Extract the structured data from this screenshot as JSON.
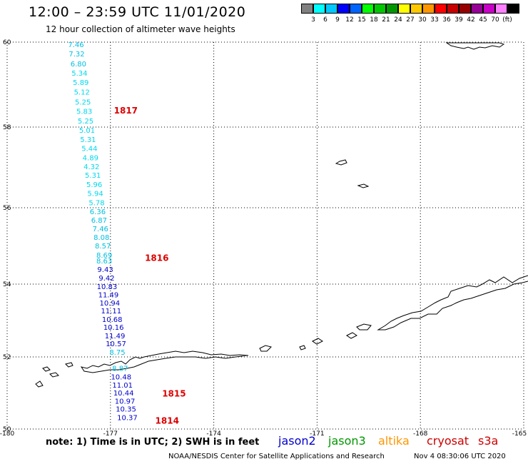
{
  "header": {
    "title": "12:00 – 23:59 UTC 11/01/2020",
    "subtitle": "12 hour collection of altimeter wave heights"
  },
  "legend": {
    "colors": [
      "#808080",
      "#00ffff",
      "#00c8ff",
      "#0000ff",
      "#0064ff",
      "#00ff00",
      "#00c800",
      "#009600",
      "#ffff00",
      "#ffc800",
      "#ff9600",
      "#ff0000",
      "#c80000",
      "#960000",
      "#960096",
      "#c800c8",
      "#ff80ff",
      "#000000"
    ],
    "labels": [
      "3",
      "6",
      "9",
      "12",
      "15",
      "18",
      "21",
      "24",
      "27",
      "30",
      "33",
      "36",
      "39",
      "42",
      "45",
      "70",
      "(ft)"
    ]
  },
  "axes": {
    "x_labels": [
      "-180",
      "-177",
      "-174",
      "-171",
      "-168",
      "-165"
    ],
    "y_labels": [
      "60",
      "58",
      "56",
      "54",
      "52",
      "50"
    ]
  },
  "tracks": [
    {
      "label": "1817",
      "label_lat": 58.4,
      "label_lon": -176.9
    },
    {
      "label": "1816",
      "label_lat": 54.7,
      "label_lon": -176.0
    },
    {
      "label": "1815",
      "label_lat": 51.0,
      "label_lon": -175.5
    },
    {
      "label": "1814",
      "label_lat": 50.25,
      "label_lon": -175.7
    }
  ],
  "observations": [
    {
      "value": "7.46",
      "lat": 59.95,
      "lon": -178.0,
      "color": "#00bfe0"
    },
    {
      "value": "7.32",
      "lat": 59.73,
      "lon": -177.98,
      "color": "#00bfe0"
    },
    {
      "value": "6.80",
      "lat": 59.5,
      "lon": -177.93,
      "color": "#00bfe0"
    },
    {
      "value": "5.34",
      "lat": 59.28,
      "lon": -177.9,
      "color": "#00d8ee"
    },
    {
      "value": "5.89",
      "lat": 59.06,
      "lon": -177.86,
      "color": "#00d8ee"
    },
    {
      "value": "5.12",
      "lat": 58.83,
      "lon": -177.83,
      "color": "#00d8ee"
    },
    {
      "value": "5.25",
      "lat": 58.6,
      "lon": -177.8,
      "color": "#00d8ee"
    },
    {
      "value": "5.83",
      "lat": 58.38,
      "lon": -177.76,
      "color": "#00d8ee"
    },
    {
      "value": "5.25",
      "lat": 58.15,
      "lon": -177.72,
      "color": "#00d8ee"
    },
    {
      "value": "5.01",
      "lat": 57.93,
      "lon": -177.68,
      "color": "#00d8ee"
    },
    {
      "value": "5.31",
      "lat": 57.7,
      "lon": -177.65,
      "color": "#00d8ee"
    },
    {
      "value": "5.44",
      "lat": 57.48,
      "lon": -177.61,
      "color": "#00d8ee"
    },
    {
      "value": "4.89",
      "lat": 57.25,
      "lon": -177.58,
      "color": "#00d8ee"
    },
    {
      "value": "4.32",
      "lat": 57.03,
      "lon": -177.55,
      "color": "#00d8ee"
    },
    {
      "value": "5.31",
      "lat": 56.81,
      "lon": -177.51,
      "color": "#00d8ee"
    },
    {
      "value": "5.96",
      "lat": 56.58,
      "lon": -177.47,
      "color": "#00d8ee"
    },
    {
      "value": "5.94",
      "lat": 56.36,
      "lon": -177.44,
      "color": "#00d8ee"
    },
    {
      "value": "5.78",
      "lat": 56.13,
      "lon": -177.4,
      "color": "#00d8ee"
    },
    {
      "value": "6.36",
      "lat": 55.91,
      "lon": -177.37,
      "color": "#00bfe0"
    },
    {
      "value": "6.87",
      "lat": 55.68,
      "lon": -177.33,
      "color": "#00bfe0"
    },
    {
      "value": "7.46",
      "lat": 55.46,
      "lon": -177.29,
      "color": "#00bfe0"
    },
    {
      "value": "8.08",
      "lat": 55.23,
      "lon": -177.26,
      "color": "#00bfe0"
    },
    {
      "value": "8.57",
      "lat": 55.01,
      "lon": -177.22,
      "color": "#00bfe0"
    },
    {
      "value": "8.69",
      "lat": 54.77,
      "lon": -177.18,
      "color": "#00bfe0"
    },
    {
      "value": "8.63",
      "lat": 54.62,
      "lon": -177.18,
      "color": "#00bfe0"
    },
    {
      "value": "9.43",
      "lat": 54.39,
      "lon": -177.15,
      "color": "#0000cc"
    },
    {
      "value": "9.42",
      "lat": 54.17,
      "lon": -177.11,
      "color": "#0000cc"
    },
    {
      "value": "10.83",
      "lat": 53.94,
      "lon": -177.1,
      "color": "#0000cc"
    },
    {
      "value": "11.49",
      "lat": 53.72,
      "lon": -177.06,
      "color": "#0000cc"
    },
    {
      "value": "10.94",
      "lat": 53.49,
      "lon": -177.02,
      "color": "#0000cc"
    },
    {
      "value": "11.11",
      "lat": 53.27,
      "lon": -176.98,
      "color": "#0000cc"
    },
    {
      "value": "10.68",
      "lat": 53.04,
      "lon": -176.95,
      "color": "#0000cc"
    },
    {
      "value": "10.16",
      "lat": 52.82,
      "lon": -176.91,
      "color": "#0000cc"
    },
    {
      "value": "11.49",
      "lat": 52.59,
      "lon": -176.87,
      "color": "#0000cc"
    },
    {
      "value": "10.57",
      "lat": 52.37,
      "lon": -176.84,
      "color": "#0000cc"
    },
    {
      "value": "8.75",
      "lat": 52.14,
      "lon": -176.8,
      "color": "#00bfe0"
    },
    {
      "value": "8.87",
      "lat": 51.69,
      "lon": -176.72,
      "color": "#00bfe0"
    },
    {
      "value": "10.48",
      "lat": 51.46,
      "lon": -176.69,
      "color": "#0000cc"
    },
    {
      "value": "11.01",
      "lat": 51.23,
      "lon": -176.65,
      "color": "#0000cc"
    },
    {
      "value": "10.44",
      "lat": 51.01,
      "lon": -176.62,
      "color": "#0000cc"
    },
    {
      "value": "10.97",
      "lat": 50.78,
      "lon": -176.58,
      "color": "#0000cc"
    },
    {
      "value": "10.35",
      "lat": 50.56,
      "lon": -176.55,
      "color": "#0000cc"
    },
    {
      "value": "10.37",
      "lat": 50.33,
      "lon": -176.51,
      "color": "#0000cc"
    }
  ],
  "footer": {
    "note": "note: 1) Time is in UTC; 2) SWH is in feet",
    "satellites": [
      {
        "name": "jason2",
        "color": "#0000cc"
      },
      {
        "name": "jason3",
        "color": "#009600"
      },
      {
        "name": "altika",
        "color": "#ff9600"
      },
      {
        "name": "cryosat",
        "color": "#cc0000"
      },
      {
        "name": "s3a",
        "color": "#cc0000"
      }
    ],
    "credit": "NOAA/NESDIS Center for Satellite Applications and Research",
    "timestamp": "Nov  4 08:30:06 UTC 2020"
  }
}
